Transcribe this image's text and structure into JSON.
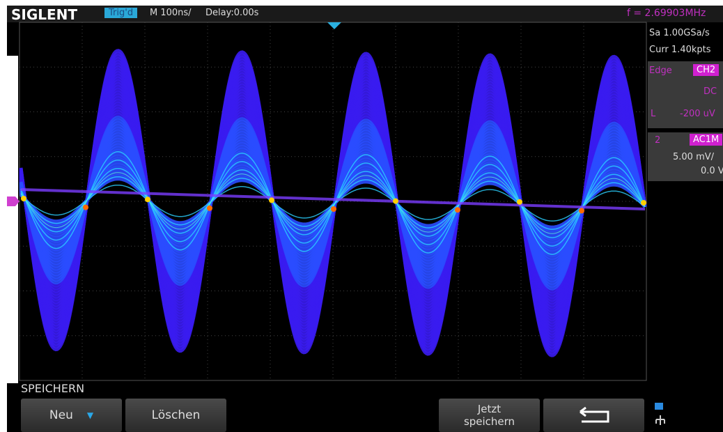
{
  "header": {
    "brand": "SIGLENT",
    "status": "Trig'd",
    "timebase": "M 100ns/",
    "delay": "Delay:0.00s",
    "frequency": "f = 2.69903MHz"
  },
  "side_panel": {
    "sample_rate": "Sa 1.00GSa/s",
    "memory": "Curr 1.40kpts",
    "trigger": {
      "type": "Edge",
      "source": "CH2",
      "coupling": "DC",
      "level_label": "L",
      "level": "-200 uV"
    },
    "channel": {
      "number": "2",
      "coupling": "AC1M",
      "scale": "5.00 mV/",
      "offset": "0.0 V"
    }
  },
  "menu": {
    "title": "SPEICHERN",
    "buttons": {
      "new": "Neu",
      "delete": "Löschen",
      "save_now": [
        "Jetzt",
        "speichern"
      ]
    }
  }
}
